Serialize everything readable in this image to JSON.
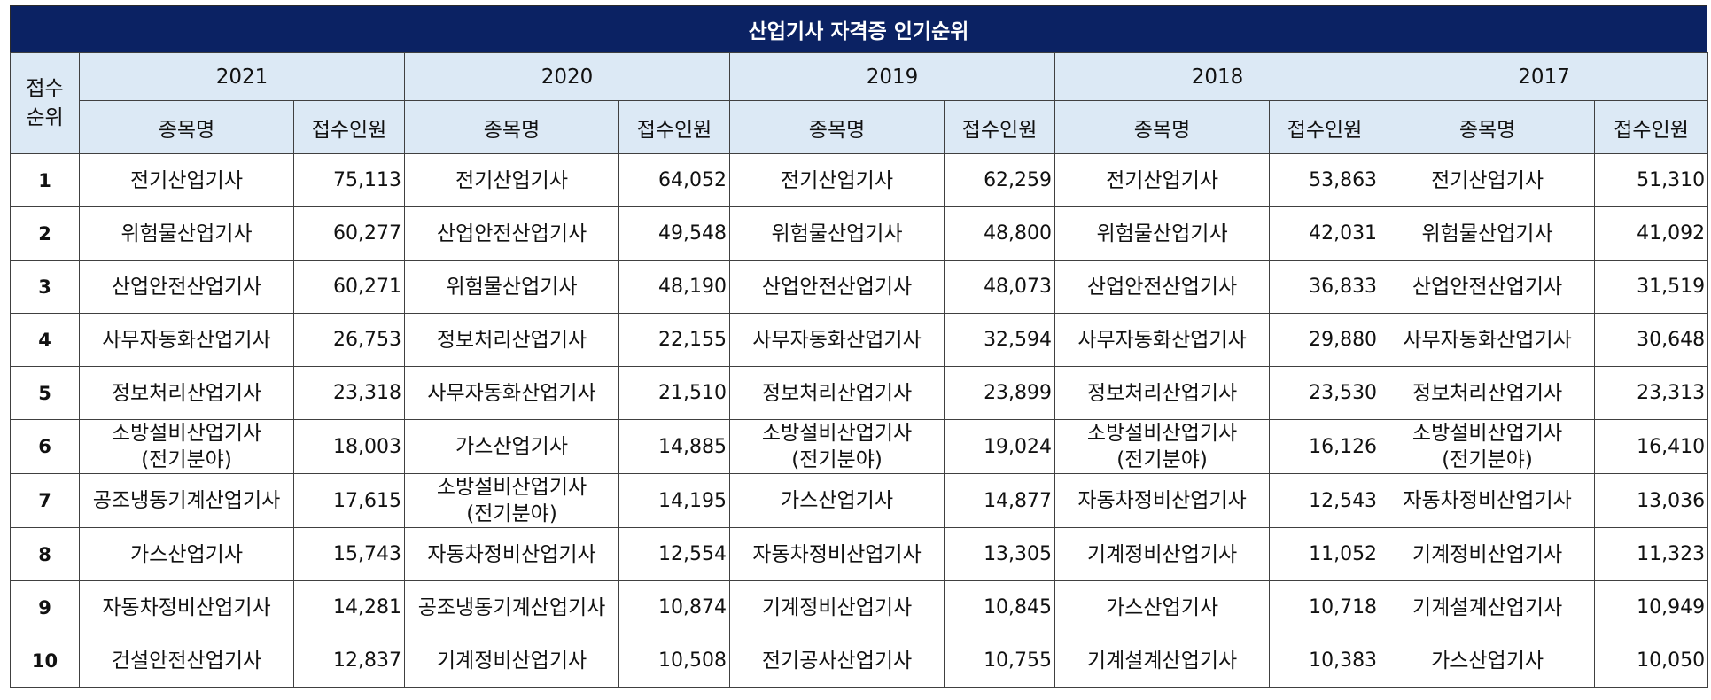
{
  "title": "산업기사 자격증 인기순위",
  "rank_header_line1": "접수",
  "rank_header_line2": "순위",
  "name_header": "종목명",
  "count_header": "접수인원",
  "years": [
    "2021",
    "2020",
    "2019",
    "2018",
    "2017"
  ],
  "rows": [
    {
      "rank": "1",
      "cells": [
        {
          "name": [
            "전기산업기사"
          ],
          "count": "75,113"
        },
        {
          "name": [
            "전기산업기사"
          ],
          "count": "64,052"
        },
        {
          "name": [
            "전기산업기사"
          ],
          "count": "62,259"
        },
        {
          "name": [
            "전기산업기사"
          ],
          "count": "53,863"
        },
        {
          "name": [
            "전기산업기사"
          ],
          "count": "51,310"
        }
      ]
    },
    {
      "rank": "2",
      "cells": [
        {
          "name": [
            "위험물산업기사"
          ],
          "count": "60,277"
        },
        {
          "name": [
            "산업안전산업기사"
          ],
          "count": "49,548"
        },
        {
          "name": [
            "위험물산업기사"
          ],
          "count": "48,800"
        },
        {
          "name": [
            "위험물산업기사"
          ],
          "count": "42,031"
        },
        {
          "name": [
            "위험물산업기사"
          ],
          "count": "41,092"
        }
      ]
    },
    {
      "rank": "3",
      "cells": [
        {
          "name": [
            "산업안전산업기사"
          ],
          "count": "60,271"
        },
        {
          "name": [
            "위험물산업기사"
          ],
          "count": "48,190"
        },
        {
          "name": [
            "산업안전산업기사"
          ],
          "count": "48,073"
        },
        {
          "name": [
            "산업안전산업기사"
          ],
          "count": "36,833"
        },
        {
          "name": [
            "산업안전산업기사"
          ],
          "count": "31,519"
        }
      ]
    },
    {
      "rank": "4",
      "cells": [
        {
          "name": [
            "사무자동화산업기사"
          ],
          "count": "26,753"
        },
        {
          "name": [
            "정보처리산업기사"
          ],
          "count": "22,155"
        },
        {
          "name": [
            "사무자동화산업기사"
          ],
          "count": "32,594"
        },
        {
          "name": [
            "사무자동화산업기사"
          ],
          "count": "29,880"
        },
        {
          "name": [
            "사무자동화산업기사"
          ],
          "count": "30,648"
        }
      ]
    },
    {
      "rank": "5",
      "cells": [
        {
          "name": [
            "정보처리산업기사"
          ],
          "count": "23,318"
        },
        {
          "name": [
            "사무자동화산업기사"
          ],
          "count": "21,510"
        },
        {
          "name": [
            "정보처리산업기사"
          ],
          "count": "23,899"
        },
        {
          "name": [
            "정보처리산업기사"
          ],
          "count": "23,530"
        },
        {
          "name": [
            "정보처리산업기사"
          ],
          "count": "23,313"
        }
      ]
    },
    {
      "rank": "6",
      "cells": [
        {
          "name": [
            "소방설비산업기사",
            "(전기분야)"
          ],
          "count": "18,003"
        },
        {
          "name": [
            "가스산업기사"
          ],
          "count": "14,885"
        },
        {
          "name": [
            "소방설비산업기사",
            "(전기분야)"
          ],
          "count": "19,024"
        },
        {
          "name": [
            "소방설비산업기사",
            "(전기분야)"
          ],
          "count": "16,126"
        },
        {
          "name": [
            "소방설비산업기사",
            "(전기분야)"
          ],
          "count": "16,410"
        }
      ]
    },
    {
      "rank": "7",
      "cells": [
        {
          "name": [
            "공조냉동기계산업기사"
          ],
          "count": "17,615"
        },
        {
          "name": [
            "소방설비산업기사",
            "(전기분야)"
          ],
          "count": "14,195"
        },
        {
          "name": [
            "가스산업기사"
          ],
          "count": "14,877"
        },
        {
          "name": [
            "자동차정비산업기사"
          ],
          "count": "12,543"
        },
        {
          "name": [
            "자동차정비산업기사"
          ],
          "count": "13,036"
        }
      ]
    },
    {
      "rank": "8",
      "cells": [
        {
          "name": [
            "가스산업기사"
          ],
          "count": "15,743"
        },
        {
          "name": [
            "자동차정비산업기사"
          ],
          "count": "12,554"
        },
        {
          "name": [
            "자동차정비산업기사"
          ],
          "count": "13,305"
        },
        {
          "name": [
            "기계정비산업기사"
          ],
          "count": "11,052"
        },
        {
          "name": [
            "기계정비산업기사"
          ],
          "count": "11,323"
        }
      ]
    },
    {
      "rank": "9",
      "cells": [
        {
          "name": [
            "자동차정비산업기사"
          ],
          "count": "14,281"
        },
        {
          "name": [
            "공조냉동기계산업기사"
          ],
          "count": "10,874"
        },
        {
          "name": [
            "기계정비산업기사"
          ],
          "count": "10,845"
        },
        {
          "name": [
            "가스산업기사"
          ],
          "count": "10,718"
        },
        {
          "name": [
            "기계설계산업기사"
          ],
          "count": "10,949"
        }
      ]
    },
    {
      "rank": "10",
      "cells": [
        {
          "name": [
            "건설안전산업기사"
          ],
          "count": "12,837"
        },
        {
          "name": [
            "기계정비산업기사"
          ],
          "count": "10,508"
        },
        {
          "name": [
            "전기공사산업기사"
          ],
          "count": "10,755"
        },
        {
          "name": [
            "기계설계산업기사"
          ],
          "count": "10,383"
        },
        {
          "name": [
            "가스산업기사"
          ],
          "count": "10,050"
        }
      ]
    }
  ],
  "colors": {
    "title_bg": "#0b2263",
    "header_bg": "#dce9f5",
    "border": "#404040"
  }
}
